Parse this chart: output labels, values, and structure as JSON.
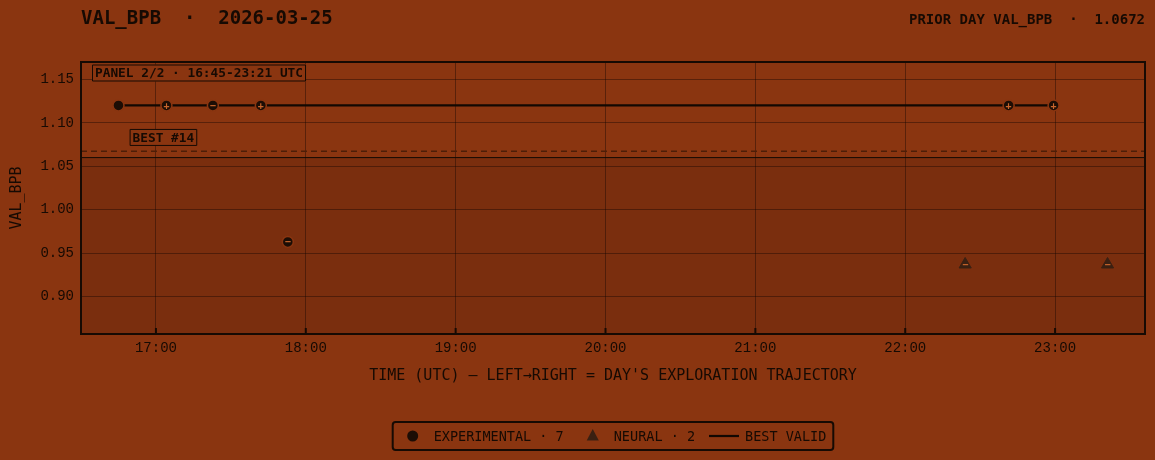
{
  "chart_data": {
    "type": "scatter",
    "title": "VAL_BPB  ·  2026-03-25",
    "subtitle": "PRIOR DAY VAL_BPB  ·  1.0672",
    "xlabel": "TIME (UTC) — LEFT→RIGHT = DAY'S EXPLORATION TRAJECTORY",
    "ylabel": "VAL_BPB",
    "annotations": [
      "PANEL 2/2 · 16:45-23:21 UTC",
      {
        "text": "BEST #14",
        "x": 17.07,
        "y": 1.12
      }
    ],
    "series": [
      {
        "name": "EXPERIMENTAL · 7",
        "type": "scatter",
        "color": "#1c0d05",
        "marker": "circle",
        "x": [
          16.75,
          17.07,
          17.38,
          17.7,
          17.88,
          22.69,
          22.99
        ],
        "values": [
          1.12,
          1.12,
          1.12,
          1.12,
          0.963,
          1.12,
          1.12
        ],
        "value_labels": [
          null,
          "+",
          "−",
          "+",
          "−",
          "+",
          "+"
        ]
      },
      {
        "name": "NEURAL · 2",
        "type": "scatter",
        "color": "#3a2012",
        "marker": "triangle",
        "x": [
          22.4,
          23.35
        ],
        "values": [
          0.937,
          0.937
        ],
        "value_labels": [
          "−",
          "−"
        ]
      },
      {
        "name": "BEST VALID",
        "type": "line",
        "color": "#120802",
        "marker": "none",
        "line_style": "solid",
        "x": [
          16.75,
          17.07,
          17.38,
          17.7,
          22.69,
          22.99
        ],
        "values": [
          1.12,
          1.12,
          1.12,
          1.12,
          1.12,
          1.12
        ]
      }
    ],
    "xlim": [
      16.5,
      23.6
    ],
    "xticks": [
      {
        "value": 17,
        "label": "17:00"
      },
      {
        "value": 18,
        "label": "18:00"
      },
      {
        "value": 19,
        "label": "19:00"
      },
      {
        "value": 20,
        "label": "20:00"
      },
      {
        "value": 21,
        "label": "21:00"
      },
      {
        "value": 22,
        "label": "22:00"
      },
      {
        "value": 23,
        "label": "23:00"
      }
    ],
    "ylim": [
      0.857,
      1.17
    ],
    "yticks": [
      {
        "value": 0.9,
        "label": "0.90"
      },
      {
        "value": 0.95,
        "label": "0.95"
      },
      {
        "value": 1.0,
        "label": "1.00"
      },
      {
        "value": 1.05,
        "label": "1.05"
      },
      {
        "value": 1.1,
        "label": "1.10"
      },
      {
        "value": 1.15,
        "label": "1.15"
      }
    ],
    "ref_lines": [
      {
        "axis": "y",
        "value": 1.0672,
        "color": "#4e1e07",
        "line_style": "dashed"
      }
    ],
    "bands": [
      {
        "axis": "y",
        "from": 0.857,
        "to": 1.06,
        "color": "#7a2e0e"
      }
    ],
    "grid": true,
    "legend": "bottom"
  }
}
